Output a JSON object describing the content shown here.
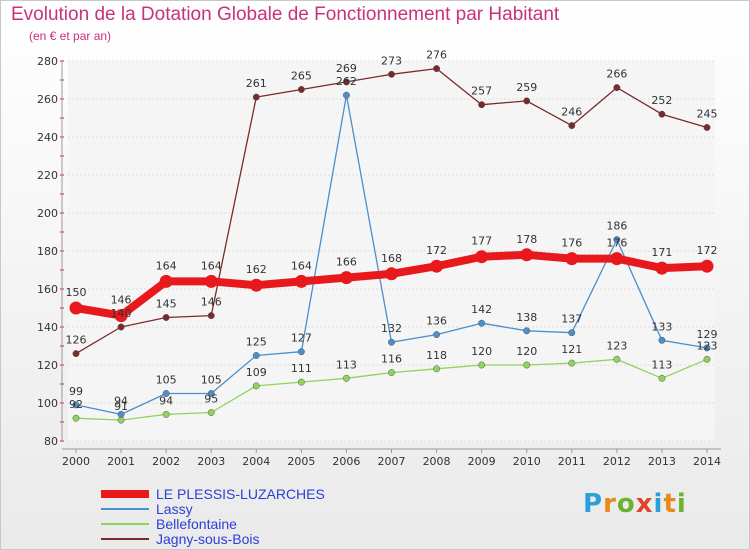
{
  "title": "Evolution de la Dotation Globale de Fonctionnement par Habitant",
  "subtitle": "(en € et par an)",
  "logo": {
    "text": "Proxiti"
  },
  "chart_data": {
    "type": "line",
    "title": "Evolution de la Dotation Globale de Fonctionnement par Habitant",
    "subtitle": "(en € et par an)",
    "xlabel": "",
    "ylabel": "",
    "x": [
      "2000",
      "2001",
      "2002",
      "2003",
      "2004",
      "2005",
      "2006",
      "2007",
      "2008",
      "2009",
      "2010",
      "2011",
      "2012",
      "2013",
      "2014"
    ],
    "ylim": [
      80,
      280
    ],
    "yticks": [
      80,
      100,
      120,
      140,
      160,
      180,
      200,
      220,
      240,
      260,
      280
    ],
    "grid": "horizontal",
    "legend": "bottom",
    "series": [
      {
        "name": "LE PLESSIS-LUZARCHES",
        "color": "#e8191d",
        "values": [
          150,
          146,
          164,
          164,
          162,
          164,
          166,
          168,
          172,
          177,
          178,
          176,
          176,
          171,
          172
        ]
      },
      {
        "name": "Lassy",
        "color": "#4b8fcc",
        "values": [
          99,
          94,
          105,
          105,
          125,
          127,
          262,
          132,
          136,
          142,
          138,
          137,
          186,
          133,
          129
        ]
      },
      {
        "name": "Bellefontaine",
        "color": "#8fd45a",
        "values": [
          92,
          91,
          94,
          95,
          109,
          111,
          113,
          116,
          118,
          120,
          120,
          121,
          123,
          113,
          123
        ]
      },
      {
        "name": "Jagny-sous-Bois",
        "color": "#7a2a2a",
        "values": [
          126,
          140,
          145,
          146,
          261,
          265,
          269,
          273,
          276,
          257,
          259,
          246,
          266,
          252,
          245
        ]
      }
    ],
    "data_labels": {
      "LE PLESSIS-LUZARCHES": [
        "150",
        "146",
        "164",
        "164",
        "162",
        "164",
        "166",
        "168",
        "172",
        "177",
        "178",
        "176",
        "176",
        "171",
        "172"
      ],
      "Lassy": [
        "99",
        "94",
        "105",
        "105",
        "125",
        "127",
        "262",
        "132",
        "136",
        "142",
        "138",
        "137",
        "186",
        "133",
        "129"
      ],
      "Bellefontaine": [
        "92",
        "91",
        "94",
        "95",
        "109",
        "111",
        "113",
        "116",
        "118",
        "120",
        "120",
        "121",
        "123",
        "113",
        "123"
      ],
      "Jagny-sous-Bois": [
        "126",
        "140",
        "145",
        "146",
        "261",
        "265",
        "269",
        "273",
        "276",
        "257",
        "259",
        "246",
        "266",
        "252",
        "245"
      ]
    }
  }
}
